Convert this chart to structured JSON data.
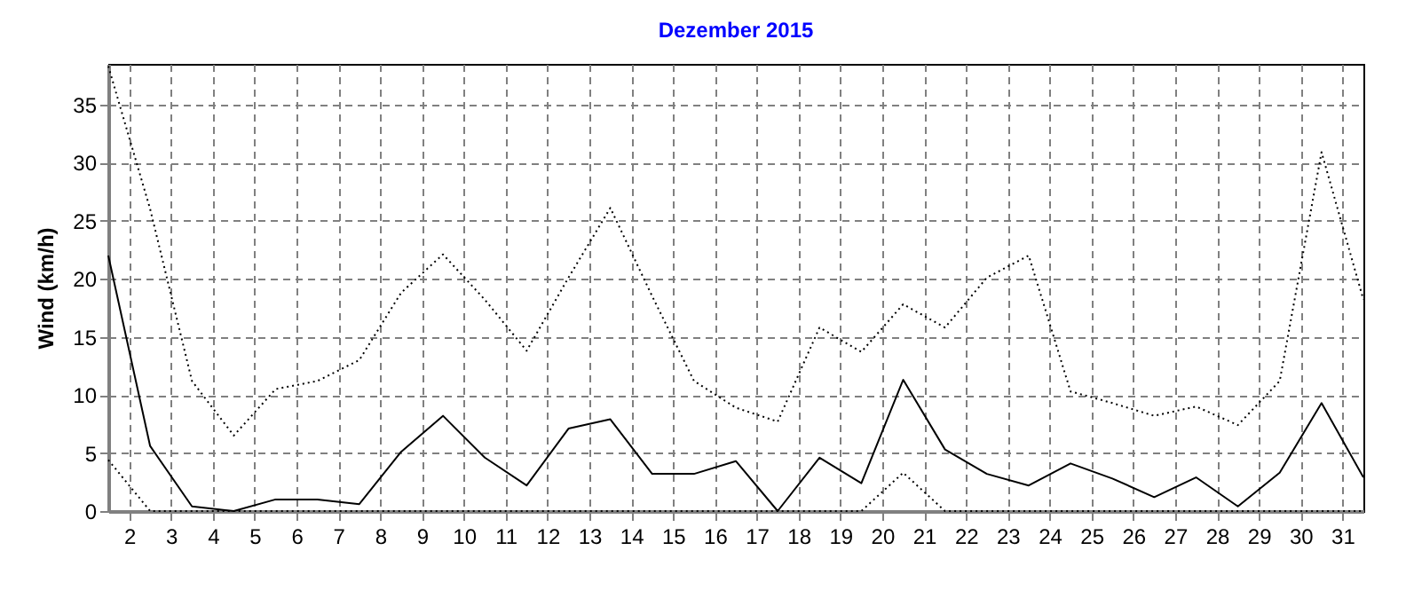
{
  "chart_data": {
    "type": "line",
    "title": "Dezember 2015",
    "ylabel": "Wind  (km/h)",
    "x": [
      1.5,
      2.5,
      3.5,
      4.5,
      5.5,
      6.5,
      7.5,
      8.5,
      9.5,
      10.5,
      11.5,
      12.5,
      13.5,
      14.5,
      15.5,
      16.5,
      17.5,
      18.5,
      19.5,
      20.5,
      21.5,
      22.5,
      23.5,
      24.5,
      25.5,
      26.5,
      27.5,
      28.5,
      29.5,
      30.5,
      31.5
    ],
    "series": [
      {
        "color": "#000000",
        "line_style": "dotted",
        "values": [
          38.3,
          26,
          11.2,
          6.5,
          10.5,
          11.2,
          13.0,
          18.8,
          22.1,
          18.2,
          13.8,
          20.1,
          26.1,
          18.5,
          11.2,
          8.9,
          7.7,
          15.8,
          13.7,
          17.8,
          15.8,
          20.1,
          22.0,
          10.3,
          9.3,
          8.2,
          9.0,
          7.4,
          11.2,
          30.9,
          18.2
        ]
      },
      {
        "color": "#000000",
        "line_style": "solid",
        "values": [
          22.0,
          5.6,
          0.4,
          0.0,
          1.0,
          1.0,
          0.6,
          5.1,
          8.2,
          4.6,
          2.2,
          7.1,
          7.9,
          3.2,
          3.2,
          4.3,
          0.0,
          4.6,
          2.4,
          11.3,
          5.3,
          3.2,
          2.2,
          4.1,
          2.8,
          1.2,
          2.9,
          0.4,
          3.3,
          9.3,
          2.9
        ]
      },
      {
        "color": "#000000",
        "line_style": "dotted",
        "values": [
          4.4,
          0,
          0,
          0,
          0,
          0,
          0,
          0,
          0,
          0,
          0,
          0,
          0,
          0,
          0,
          0,
          0,
          0,
          0,
          3.3,
          0,
          0,
          0,
          0,
          0,
          0,
          0,
          0,
          0,
          0,
          0
        ]
      }
    ],
    "xlim": [
      1.5,
      31.5
    ],
    "xticks": [
      2,
      3,
      4,
      5,
      6,
      7,
      8,
      9,
      10,
      11,
      12,
      13,
      14,
      15,
      16,
      17,
      18,
      19,
      20,
      21,
      22,
      23,
      24,
      25,
      26,
      27,
      28,
      29,
      30,
      31
    ],
    "ylim": [
      0,
      38.5
    ],
    "yticks": [
      0,
      5,
      10,
      15,
      20,
      25,
      30,
      35
    ],
    "grid": true
  }
}
